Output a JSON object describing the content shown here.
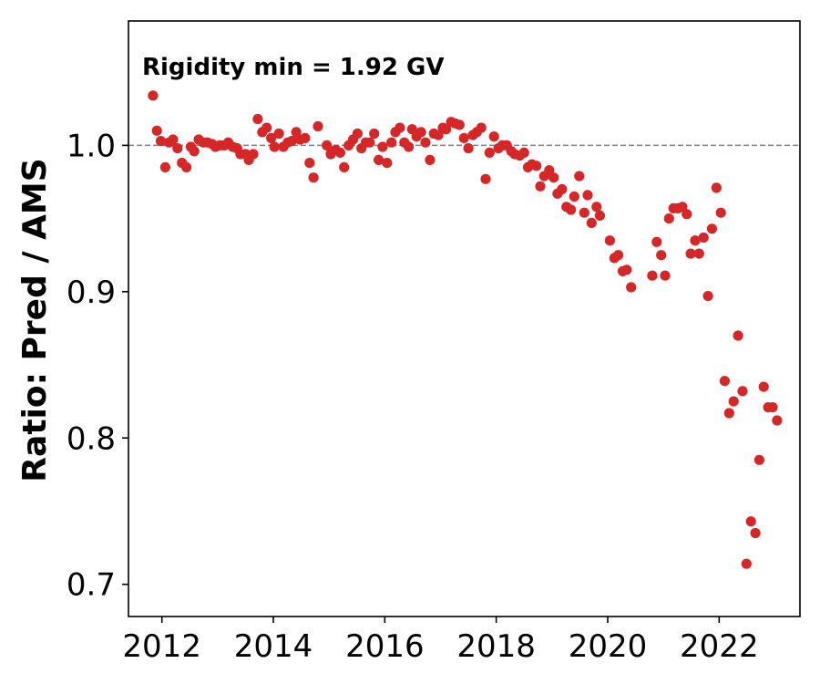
{
  "chart_data": {
    "type": "scatter",
    "title": "",
    "xlabel": "",
    "ylabel": "Ratio: Pred / AMS",
    "annotation": "Rigidity min = 1.92 GV",
    "xlim": [
      2011.4,
      2023.45
    ],
    "ylim": [
      0.678,
      1.085
    ],
    "xticks": [
      2012,
      2014,
      2016,
      2018,
      2020,
      2022
    ],
    "xtick_labels": [
      "2012",
      "2014",
      "2016",
      "2018",
      "2020",
      "2022"
    ],
    "yticks": [
      0.7,
      0.8,
      0.9,
      1.0
    ],
    "ytick_labels": [
      "0.7",
      "0.8",
      "0.9",
      "1.0"
    ],
    "reference_line": 1.0,
    "grid": false,
    "colors": {
      "marker": "#d62728",
      "reference_line": "#808080"
    },
    "points": [
      [
        2011.84,
        1.034
      ],
      [
        2011.91,
        1.01
      ],
      [
        2011.98,
        1.003
      ],
      [
        2012.06,
        0.985
      ],
      [
        2012.13,
        1.002
      ],
      [
        2012.2,
        1.004
      ],
      [
        2012.28,
        0.998
      ],
      [
        2012.36,
        0.988
      ],
      [
        2012.44,
        0.985
      ],
      [
        2012.52,
        0.999
      ],
      [
        2012.58,
        0.996
      ],
      [
        2012.66,
        1.004
      ],
      [
        2012.74,
        1.002
      ],
      [
        2012.82,
        1.002
      ],
      [
        2012.9,
        1.001
      ],
      [
        2012.96,
        0.999
      ],
      [
        2013.04,
        1.0
      ],
      [
        2013.12,
        1.0
      ],
      [
        2013.19,
        1.002
      ],
      [
        2013.27,
        0.999
      ],
      [
        2013.35,
        0.998
      ],
      [
        2013.41,
        0.994
      ],
      [
        2013.5,
        0.994
      ],
      [
        2013.56,
        0.99
      ],
      [
        2013.64,
        0.994
      ],
      [
        2013.72,
        1.018
      ],
      [
        2013.8,
        1.009
      ],
      [
        2013.88,
        1.012
      ],
      [
        2013.96,
        1.005
      ],
      [
        2014.02,
        0.999
      ],
      [
        2014.1,
        1.008
      ],
      [
        2014.18,
        0.999
      ],
      [
        2014.26,
        1.002
      ],
      [
        2014.33,
        1.003
      ],
      [
        2014.41,
        1.009
      ],
      [
        2014.48,
        1.004
      ],
      [
        2014.57,
        1.005
      ],
      [
        2014.65,
        0.988
      ],
      [
        2014.72,
        0.978
      ],
      [
        2014.8,
        1.013
      ],
      [
        2014.96,
        1.0
      ],
      [
        2015.03,
        0.994
      ],
      [
        2015.12,
        0.997
      ],
      [
        2015.2,
        0.995
      ],
      [
        2015.27,
        0.985
      ],
      [
        2015.35,
        1.0
      ],
      [
        2015.43,
        1.004
      ],
      [
        2015.51,
        1.008
      ],
      [
        2015.58,
        0.998
      ],
      [
        2015.66,
        1.002
      ],
      [
        2015.73,
        1.002
      ],
      [
        2015.81,
        1.008
      ],
      [
        2015.89,
        0.99
      ],
      [
        2015.96,
        0.999
      ],
      [
        2016.04,
        0.988
      ],
      [
        2016.12,
        1.002
      ],
      [
        2016.19,
        1.009
      ],
      [
        2016.27,
        1.012
      ],
      [
        2016.35,
        1.002
      ],
      [
        2016.43,
        0.999
      ],
      [
        2016.49,
        1.011
      ],
      [
        2016.57,
        1.006
      ],
      [
        2016.65,
        1.009
      ],
      [
        2016.73,
        1.002
      ],
      [
        2016.81,
        0.99
      ],
      [
        2016.88,
        1.008
      ],
      [
        2016.96,
        1.007
      ],
      [
        2017.04,
        1.012
      ],
      [
        2017.1,
        1.011
      ],
      [
        2017.19,
        1.016
      ],
      [
        2017.26,
        1.015
      ],
      [
        2017.34,
        1.014
      ],
      [
        2017.42,
        1.005
      ],
      [
        2017.5,
        0.998
      ],
      [
        2017.58,
        1.007
      ],
      [
        2017.65,
        1.009
      ],
      [
        2017.73,
        1.012
      ],
      [
        2017.81,
        0.977
      ],
      [
        2017.88,
        0.995
      ],
      [
        2017.96,
        1.006
      ],
      [
        2018.04,
        0.998
      ],
      [
        2018.11,
        1.0
      ],
      [
        2018.19,
        1.0
      ],
      [
        2018.27,
        0.996
      ],
      [
        2018.33,
        0.994
      ],
      [
        2018.42,
        0.993
      ],
      [
        2018.5,
        0.995
      ],
      [
        2018.57,
        0.985
      ],
      [
        2018.64,
        0.987
      ],
      [
        2018.72,
        0.986
      ],
      [
        2018.79,
        0.972
      ],
      [
        2018.86,
        0.979
      ],
      [
        2018.95,
        0.983
      ],
      [
        2019.03,
        0.978
      ],
      [
        2019.1,
        0.967
      ],
      [
        2019.18,
        0.97
      ],
      [
        2019.26,
        0.958
      ],
      [
        2019.34,
        0.956
      ],
      [
        2019.4,
        0.965
      ],
      [
        2019.49,
        0.979
      ],
      [
        2019.58,
        0.954
      ],
      [
        2019.64,
        0.966
      ],
      [
        2019.71,
        0.947
      ],
      [
        2019.8,
        0.958
      ],
      [
        2019.86,
        0.952
      ],
      [
        2020.04,
        0.935
      ],
      [
        2020.12,
        0.923
      ],
      [
        2020.19,
        0.925
      ],
      [
        2020.27,
        0.914
      ],
      [
        2020.34,
        0.915
      ],
      [
        2020.42,
        0.903
      ],
      [
        2020.8,
        0.911
      ],
      [
        2020.88,
        0.934
      ],
      [
        2020.96,
        0.925
      ],
      [
        2021.03,
        0.911
      ],
      [
        2021.1,
        0.95
      ],
      [
        2021.18,
        0.957
      ],
      [
        2021.26,
        0.957
      ],
      [
        2021.34,
        0.958
      ],
      [
        2021.42,
        0.953
      ],
      [
        2021.49,
        0.926
      ],
      [
        2021.57,
        0.935
      ],
      [
        2021.64,
        0.926
      ],
      [
        2021.72,
        0.937
      ],
      [
        2021.8,
        0.897
      ],
      [
        2021.87,
        0.943
      ],
      [
        2021.95,
        0.971
      ],
      [
        2022.03,
        0.954
      ],
      [
        2022.1,
        0.839
      ],
      [
        2022.18,
        0.817
      ],
      [
        2022.26,
        0.825
      ],
      [
        2022.34,
        0.87
      ],
      [
        2022.42,
        0.832
      ],
      [
        2022.49,
        0.714
      ],
      [
        2022.57,
        0.743
      ],
      [
        2022.65,
        0.735
      ],
      [
        2022.72,
        0.785
      ],
      [
        2022.8,
        0.835
      ],
      [
        2022.88,
        0.821
      ],
      [
        2022.96,
        0.821
      ],
      [
        2023.04,
        0.812
      ]
    ]
  }
}
